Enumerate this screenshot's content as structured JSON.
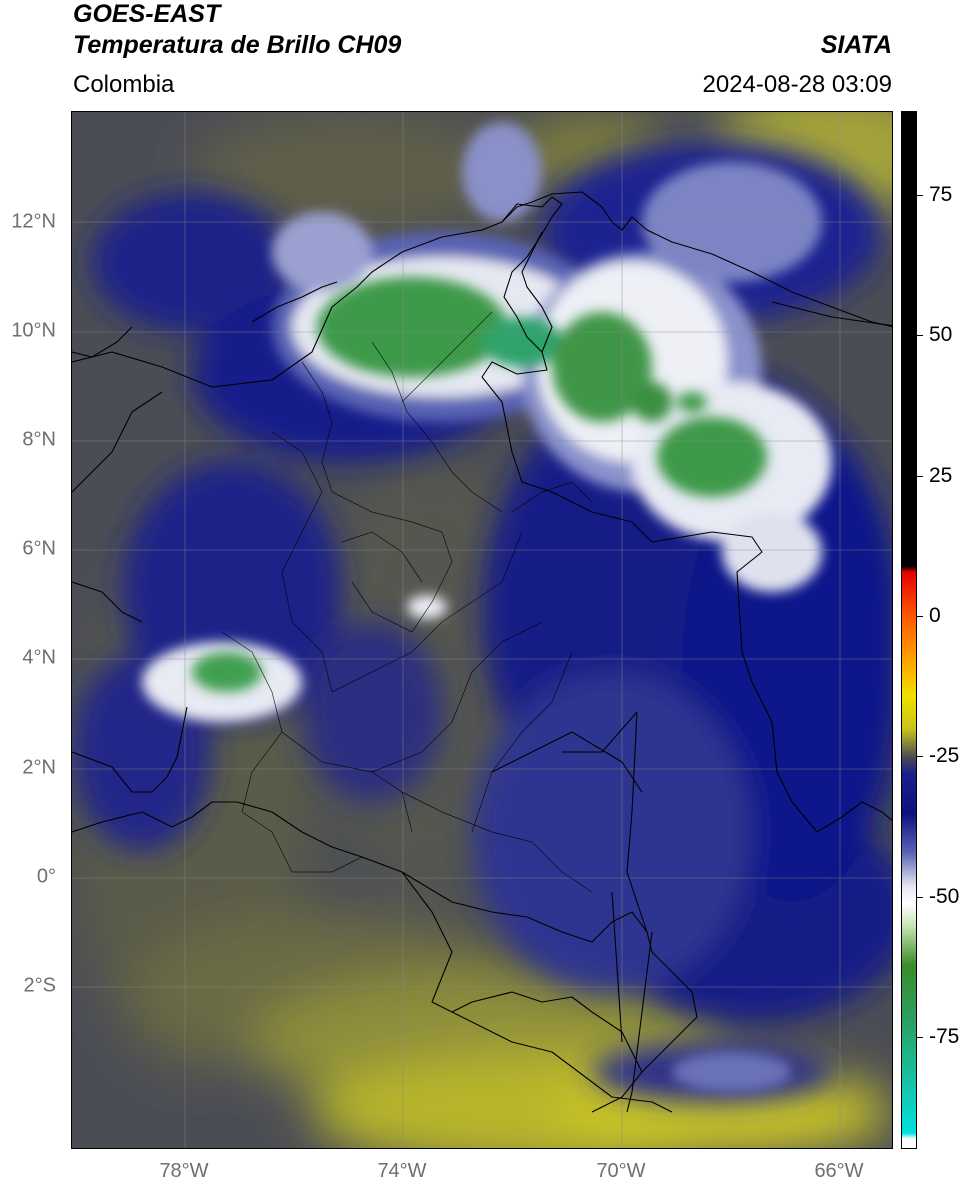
{
  "header": {
    "title_line1": "GOES-EAST",
    "title_line2": "Temperatura de Brillo CH09",
    "region": "Colombia",
    "brand": "SIATA",
    "datetime": "2024-08-28 03:09"
  },
  "map": {
    "lat_ticks": [
      "12°N",
      "10°N",
      "8°N",
      "6°N",
      "4°N",
      "2°N",
      "0°",
      "2°S"
    ],
    "lon_ticks": [
      "78°W",
      "74°W",
      "70°W",
      "66°W"
    ],
    "gridlines": true,
    "border_color": "#000000"
  },
  "colorbar": {
    "ticks": [
      "75",
      "50",
      "25",
      "0",
      "-25",
      "-50",
      "-75"
    ],
    "tick_values": [
      75,
      50,
      25,
      0,
      -25,
      -50,
      -75
    ],
    "range": [
      -95,
      90
    ],
    "stops": [
      {
        "value": 90,
        "color": "#000000"
      },
      {
        "value": 9,
        "color": "#000000"
      },
      {
        "value": 8,
        "color": "#e40000"
      },
      {
        "value": 0,
        "color": "#ff5a00"
      },
      {
        "value": -8,
        "color": "#ffa500"
      },
      {
        "value": -14,
        "color": "#f0e000"
      },
      {
        "value": -20,
        "color": "#c8c31a"
      },
      {
        "value": -25,
        "color": "#4b4b52"
      },
      {
        "value": -28,
        "color": "#1a1f8c"
      },
      {
        "value": -35,
        "color": "#0d1280"
      },
      {
        "value": -42,
        "color": "#5a64b4"
      },
      {
        "value": -48,
        "color": "#e6e6f0"
      },
      {
        "value": -51,
        "color": "#ffffff"
      },
      {
        "value": -55,
        "color": "#c8e6b4"
      },
      {
        "value": -62,
        "color": "#3c8c28"
      },
      {
        "value": -72,
        "color": "#2aa064"
      },
      {
        "value": -85,
        "color": "#14c8b4"
      },
      {
        "value": -92,
        "color": "#00e0e0"
      },
      {
        "value": -93,
        "color": "#ffffff"
      },
      {
        "value": -95,
        "color": "#ffffff"
      }
    ]
  }
}
